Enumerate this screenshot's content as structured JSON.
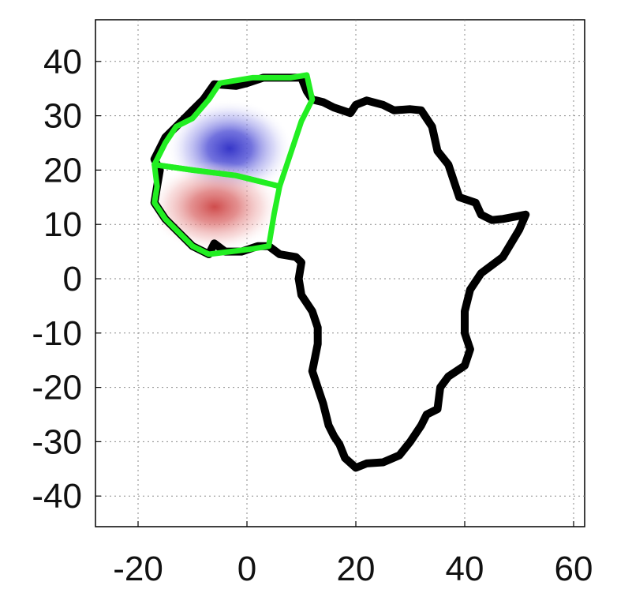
{
  "chart_data": {
    "type": "map",
    "x_ticks": [
      "-20",
      "0",
      "20",
      "40",
      "60"
    ],
    "y_ticks": [
      "40",
      "30",
      "20",
      "10",
      "0",
      "-10",
      "-20",
      "-30",
      "-40"
    ],
    "xlim": [
      -28,
      62
    ],
    "ylim": [
      -46,
      48
    ],
    "grid": true,
    "colors": {
      "continent_outline": "#000000",
      "region_outline": "#22ee22",
      "positive_anomaly": "#3a3ad0",
      "negative_anomaly": "#d05050"
    },
    "anomalies": [
      {
        "center": [
          -3,
          24
        ],
        "sign": "blue"
      },
      {
        "center": [
          -6,
          13
        ],
        "sign": "red"
      }
    ],
    "africa_outline": [
      [
        -6,
        6.5
      ],
      [
        -4,
        5
      ],
      [
        -1,
        5
      ],
      [
        2,
        6
      ],
      [
        4,
        6
      ],
      [
        6,
        4.5
      ],
      [
        9,
        4
      ],
      [
        10,
        3
      ],
      [
        9.5,
        0
      ],
      [
        10,
        -3
      ],
      [
        12,
        -6
      ],
      [
        13,
        -9
      ],
      [
        13,
        -12
      ],
      [
        12,
        -17
      ],
      [
        13,
        -20
      ],
      [
        14,
        -23
      ],
      [
        15,
        -27
      ],
      [
        16,
        -29
      ],
      [
        17,
        -30.5
      ],
      [
        18,
        -33
      ],
      [
        20,
        -34.8
      ],
      [
        22,
        -34
      ],
      [
        25,
        -33.8
      ],
      [
        28,
        -32.5
      ],
      [
        30,
        -30
      ],
      [
        32,
        -27
      ],
      [
        33,
        -25
      ],
      [
        35,
        -24
      ],
      [
        35.5,
        -20
      ],
      [
        37,
        -18
      ],
      [
        40,
        -16
      ],
      [
        41,
        -13
      ],
      [
        40,
        -10
      ],
      [
        40,
        -6
      ],
      [
        41,
        -2
      ],
      [
        43,
        1
      ],
      [
        47,
        4
      ],
      [
        50,
        9
      ],
      [
        51.2,
        11.8
      ],
      [
        47,
        11
      ],
      [
        45,
        10.8
      ],
      [
        43,
        11.8
      ],
      [
        42,
        14
      ],
      [
        39,
        15
      ],
      [
        38,
        18
      ],
      [
        37,
        21
      ],
      [
        35,
        23.5
      ],
      [
        34,
        28
      ],
      [
        32,
        31
      ],
      [
        30,
        31.2
      ],
      [
        27,
        31
      ],
      [
        25,
        32
      ],
      [
        22,
        32.8
      ],
      [
        20,
        32
      ],
      [
        19,
        30.5
      ],
      [
        16,
        31.5
      ],
      [
        14,
        32.5
      ],
      [
        12,
        33
      ],
      [
        11,
        34.5
      ],
      [
        10,
        37
      ],
      [
        5,
        37
      ],
      [
        3,
        37
      ],
      [
        0,
        36
      ],
      [
        -2,
        35.5
      ],
      [
        -6,
        35.8
      ],
      [
        -8,
        33
      ],
      [
        -10,
        31
      ],
      [
        -13,
        28
      ],
      [
        -15,
        26
      ],
      [
        -17,
        22
      ],
      [
        -16,
        20
      ],
      [
        -16.5,
        17
      ],
      [
        -17,
        14
      ],
      [
        -15,
        11
      ],
      [
        -13,
        9
      ],
      [
        -10,
        6
      ],
      [
        -7,
        4.5
      ],
      [
        -6,
        6.5
      ]
    ],
    "green_regions": [
      [
        [
          -17,
          21
        ],
        [
          -15,
          25
        ],
        [
          -13,
          28
        ],
        [
          -10,
          29.5
        ],
        [
          -7,
          33
        ],
        [
          -5,
          36
        ],
        [
          1,
          37
        ],
        [
          5,
          37
        ],
        [
          8,
          37
        ],
        [
          11,
          37.5
        ],
        [
          12,
          33
        ],
        [
          10,
          29
        ],
        [
          8,
          23
        ],
        [
          6,
          17
        ],
        [
          -2,
          19
        ],
        [
          -10,
          20
        ],
        [
          -17,
          21
        ]
      ],
      [
        [
          -17,
          21
        ],
        [
          -10,
          20
        ],
        [
          -2,
          19
        ],
        [
          6,
          17
        ],
        [
          5,
          12
        ],
        [
          4,
          6
        ],
        [
          1,
          5.5
        ],
        [
          -3,
          5
        ],
        [
          -7,
          4.5
        ],
        [
          -10,
          6
        ],
        [
          -13,
          9
        ],
        [
          -15,
          11
        ],
        [
          -17,
          14
        ],
        [
          -16.5,
          17
        ],
        [
          -17,
          21
        ]
      ]
    ]
  }
}
